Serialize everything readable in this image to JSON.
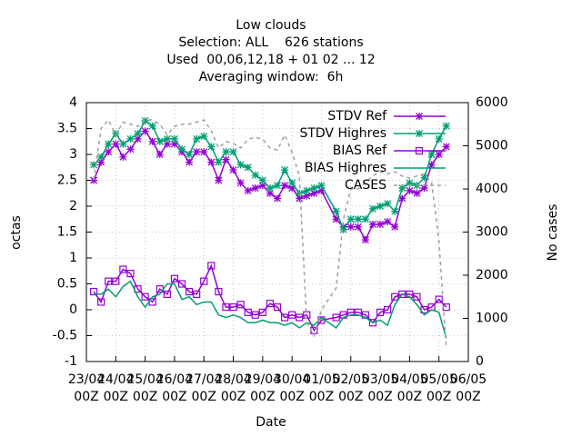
{
  "chart_data": {
    "type": "line",
    "title": [
      "Low clouds",
      "Selection: ALL    626 stations",
      "Used  00,06,12,18 + 01 02 ... 12",
      "Averaging window:  6h"
    ],
    "x_label": "Date",
    "y_label": "octas",
    "y2_label": "No cases",
    "xlim": [
      0,
      13
    ],
    "xticks": [
      {
        "value": 0,
        "label": "23/04 00Z"
      },
      {
        "value": 1,
        "label": "24/04 00Z"
      },
      {
        "value": 2,
        "label": "25/04 00Z"
      },
      {
        "value": 3,
        "label": "26/04 00Z"
      },
      {
        "value": 4,
        "label": "27/04 00Z"
      },
      {
        "value": 5,
        "label": "28/04 00Z"
      },
      {
        "value": 6,
        "label": "29/04 00Z"
      },
      {
        "value": 7,
        "label": "30/04 00Z"
      },
      {
        "value": 8,
        "label": "01/05 00Z"
      },
      {
        "value": 9,
        "label": "02/05 00Z"
      },
      {
        "value": 10,
        "label": "03/05 00Z"
      },
      {
        "value": 11,
        "label": "04/05 00Z"
      },
      {
        "value": 12,
        "label": "05/05 00Z"
      },
      {
        "value": 13,
        "label": "06/05 00Z"
      }
    ],
    "ylim": [
      -1,
      4
    ],
    "yticks": [
      -1,
      -0.5,
      0,
      0.5,
      1,
      1.5,
      2,
      2.5,
      3,
      3.5,
      4
    ],
    "y2lim": [
      0,
      6000
    ],
    "y2ticks": [
      0,
      1000,
      2000,
      3000,
      4000,
      5000,
      6000
    ],
    "grid": true,
    "legend": "top-right",
    "x": [
      0.25,
      0.5,
      0.75,
      1,
      1.25,
      1.5,
      1.75,
      2,
      2.25,
      2.5,
      2.75,
      3,
      3.25,
      3.5,
      3.75,
      4,
      4.25,
      4.5,
      4.75,
      5,
      5.25,
      5.5,
      5.75,
      6,
      6.25,
      6.5,
      6.75,
      7,
      7.25,
      7.5,
      7.75,
      8,
      8.5,
      8.75,
      9,
      9.25,
      9.5,
      9.75,
      10,
      10.25,
      10.5,
      10.75,
      11,
      11.25,
      11.5,
      11.75,
      12,
      12.25
    ],
    "series": [
      {
        "name": "STDV Ref",
        "color": "#9400d3",
        "marker": "star",
        "dash": "solid",
        "values": [
          2.5,
          2.85,
          3.05,
          3.2,
          2.95,
          3.1,
          3.3,
          3.45,
          3.25,
          3.0,
          3.2,
          3.2,
          3.05,
          2.85,
          3.05,
          3.05,
          2.85,
          2.5,
          2.9,
          2.7,
          2.45,
          2.3,
          2.35,
          2.4,
          2.25,
          2.15,
          2.4,
          2.35,
          2.15,
          2.2,
          2.25,
          2.3,
          1.75,
          1.6,
          1.6,
          1.6,
          1.35,
          1.65,
          1.65,
          1.7,
          1.6,
          2.15,
          2.3,
          2.25,
          2.35,
          2.8,
          3.0,
          3.15
        ]
      },
      {
        "name": "STDV Highres",
        "color": "#009e73",
        "marker": "star",
        "dash": "solid",
        "values": [
          2.8,
          2.95,
          3.2,
          3.4,
          3.2,
          3.3,
          3.4,
          3.65,
          3.55,
          3.25,
          3.3,
          3.3,
          3.1,
          3.0,
          3.3,
          3.35,
          3.15,
          2.85,
          3.05,
          3.05,
          2.8,
          2.75,
          2.6,
          2.5,
          2.35,
          2.4,
          2.7,
          2.45,
          2.25,
          2.3,
          2.35,
          2.4,
          1.9,
          1.55,
          1.75,
          1.75,
          1.75,
          1.95,
          2.0,
          2.05,
          1.9,
          2.35,
          2.45,
          2.4,
          2.55,
          3.0,
          3.3,
          3.55
        ]
      },
      {
        "name": "BIAS Ref",
        "color": "#9400d3",
        "marker": "square",
        "dash": "solid",
        "values": [
          0.35,
          0.15,
          0.55,
          0.55,
          0.78,
          0.7,
          0.4,
          0.25,
          0.15,
          0.4,
          0.3,
          0.6,
          0.5,
          0.35,
          0.3,
          0.55,
          0.85,
          0.35,
          0.05,
          0.05,
          0.1,
          -0.05,
          -0.1,
          -0.05,
          0.12,
          0.05,
          -0.15,
          -0.1,
          -0.15,
          -0.1,
          -0.4,
          -0.2,
          -0.15,
          -0.1,
          -0.05,
          -0.05,
          -0.1,
          -0.25,
          -0.05,
          0.0,
          0.25,
          0.3,
          0.3,
          0.25,
          0.0,
          0.05,
          0.2,
          0.05
        ]
      },
      {
        "name": "BIAS Highres",
        "color": "#009e73",
        "marker": "none",
        "dash": "solid",
        "values": [
          0.3,
          0.3,
          0.4,
          0.25,
          0.45,
          0.55,
          0.25,
          0.05,
          0.25,
          0.3,
          0.5,
          0.5,
          0.2,
          0.25,
          0.1,
          0.15,
          0.15,
          -0.1,
          -0.15,
          -0.1,
          -0.15,
          -0.25,
          -0.25,
          -0.2,
          -0.25,
          -0.25,
          -0.3,
          -0.25,
          -0.35,
          -0.25,
          -0.3,
          -0.15,
          -0.35,
          -0.15,
          -0.1,
          -0.1,
          -0.15,
          -0.25,
          -0.2,
          -0.3,
          0.1,
          0.3,
          0.25,
          0.1,
          -0.1,
          0.0,
          -0.05,
          -0.55
        ]
      },
      {
        "name": "CASES",
        "color": "#a0a0a0",
        "marker": "none",
        "dash": "dashed",
        "axis": "y2",
        "values": [
          4200,
          5400,
          5600,
          5250,
          5550,
          5500,
          5450,
          5600,
          5600,
          5500,
          5250,
          5450,
          5500,
          5500,
          5550,
          5600,
          5350,
          4950,
          5100,
          5050,
          4950,
          5150,
          5200,
          5150,
          4950,
          4900,
          5250,
          4850,
          4300,
          900,
          600,
          1200,
          1700,
          3300,
          4000,
          4000,
          4150,
          4300,
          4400,
          4350,
          4400,
          4300,
          4250,
          4300,
          4350,
          4150,
          2800,
          300
        ]
      }
    ]
  }
}
